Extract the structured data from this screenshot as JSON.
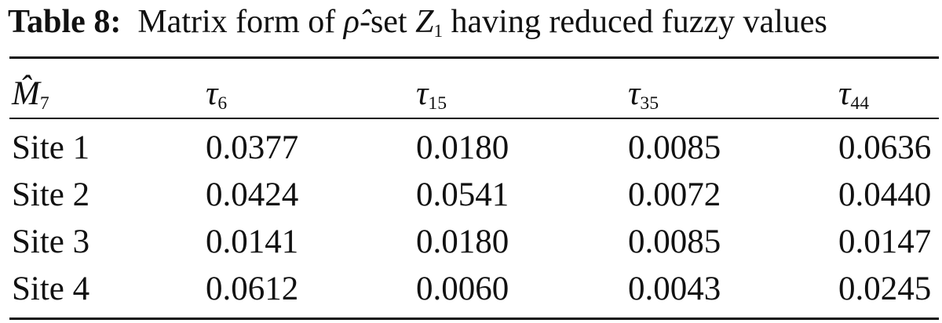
{
  "caption": {
    "label": "Table 8:",
    "parts": [
      "Matrix form of ",
      "ρ̂",
      "-set ",
      "Z",
      "1",
      " having reduced fuzzy values"
    ]
  },
  "table": {
    "header": [
      {
        "symbol": "M̂",
        "sub": "7"
      },
      {
        "symbol": "τ",
        "sub": "6"
      },
      {
        "symbol": "τ",
        "sub": "15"
      },
      {
        "symbol": "τ",
        "sub": "35"
      },
      {
        "symbol": "τ",
        "sub": "44"
      }
    ],
    "rows": [
      [
        "Site 1",
        "0.0377",
        "0.0180",
        "0.0085",
        "0.0636"
      ],
      [
        "Site 2",
        "0.0424",
        "0.0541",
        "0.0072",
        "0.0440"
      ],
      [
        "Site 3",
        "0.0141",
        "0.0180",
        "0.0085",
        "0.0147"
      ],
      [
        "Site 4",
        "0.0612",
        "0.0060",
        "0.0043",
        "0.0245"
      ]
    ]
  }
}
